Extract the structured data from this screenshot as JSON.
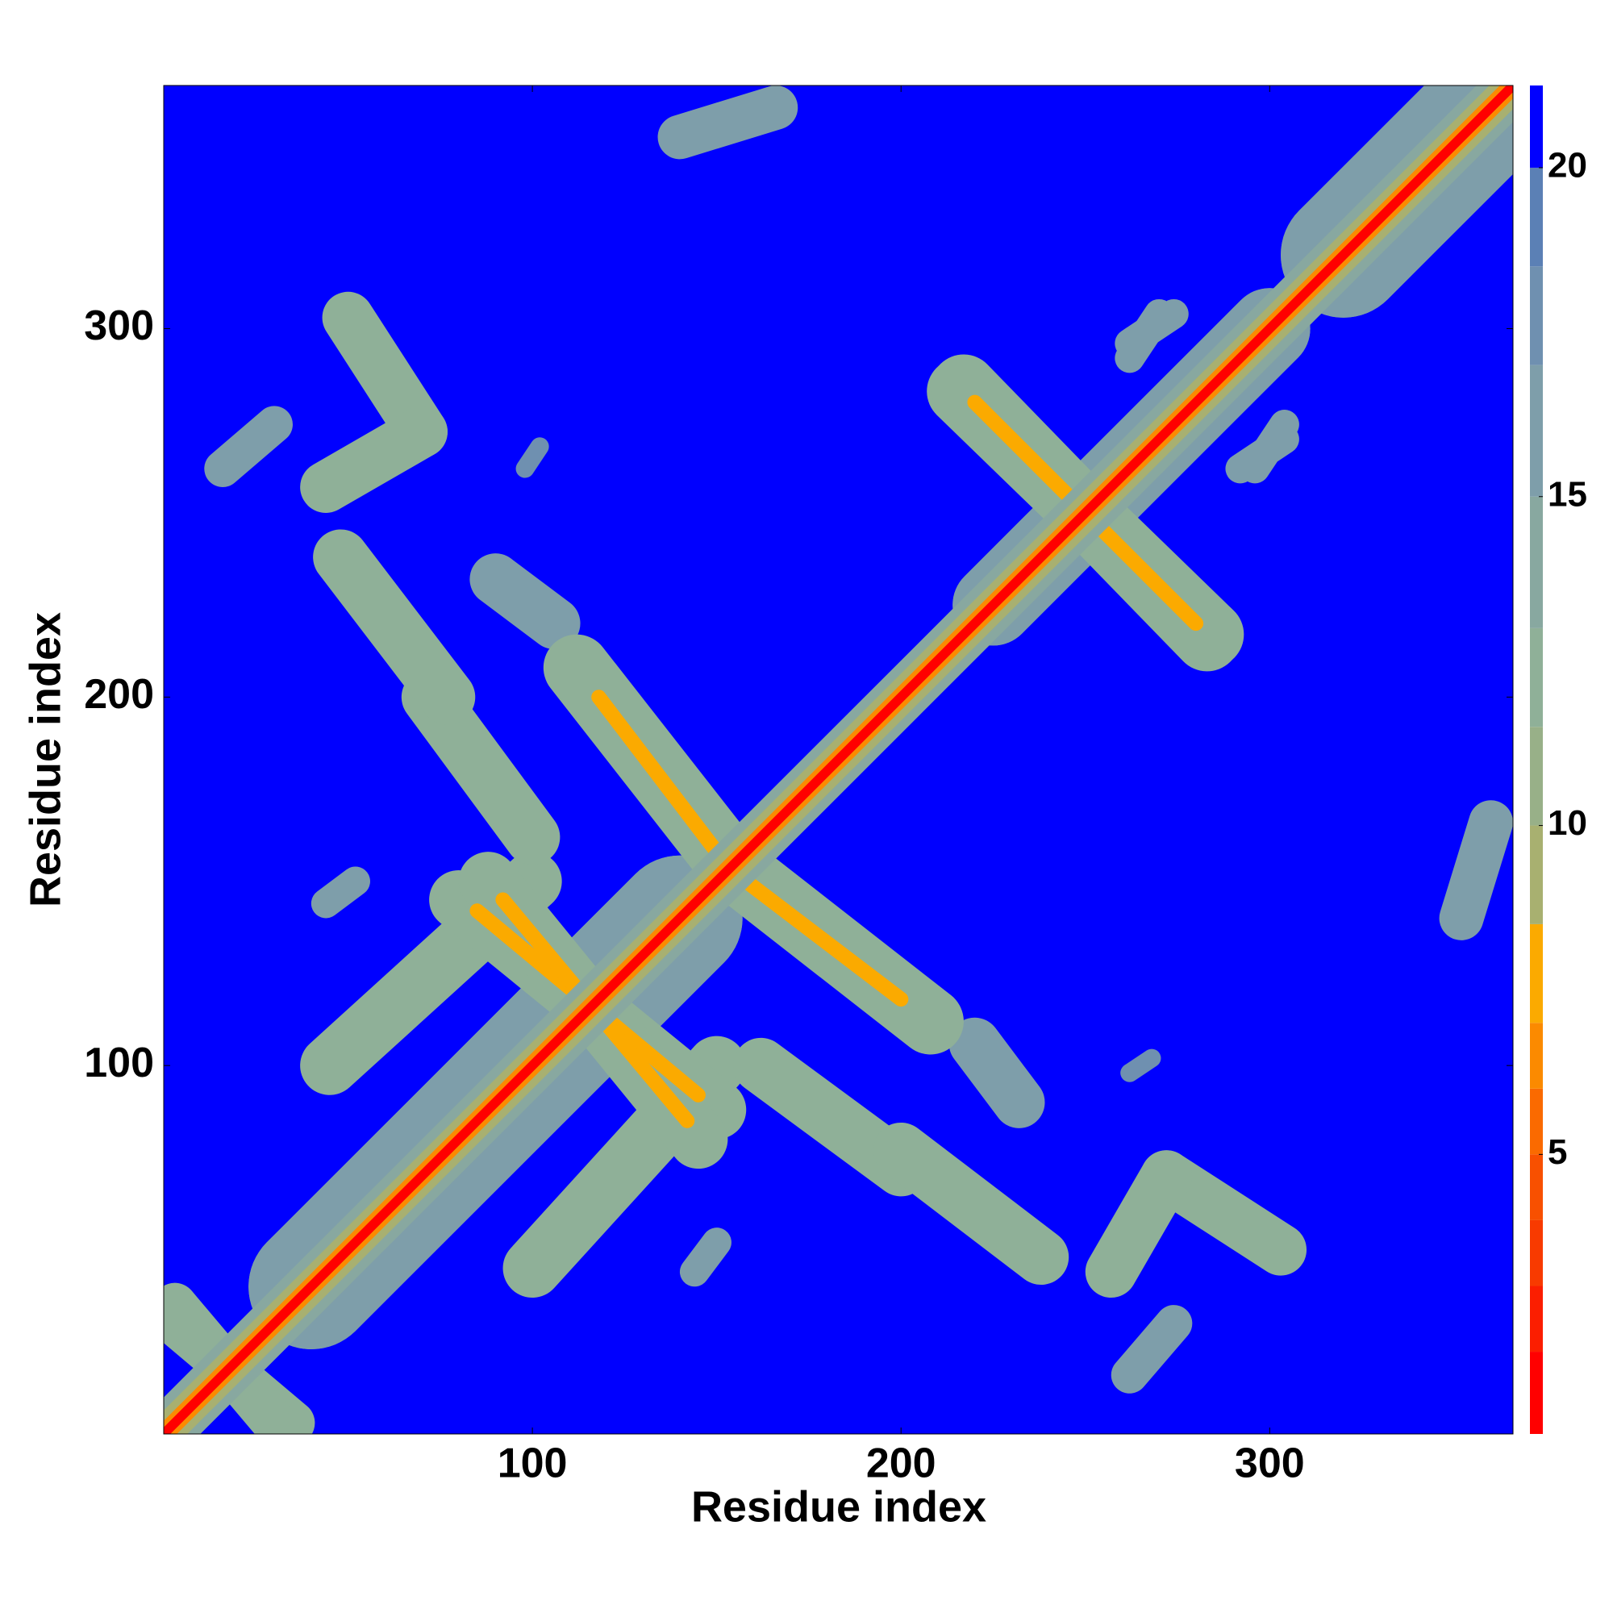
{
  "chart_data": {
    "type": "heatmap",
    "xlabel": "Residue index",
    "ylabel": "Residue index",
    "xlim": [
      0,
      366
    ],
    "ylim": [
      0,
      366
    ],
    "xticks": [
      100,
      200,
      300
    ],
    "yticks": [
      100,
      200,
      300
    ],
    "symmetric": true,
    "segments": [
      {
        "x": [
          40,
          140
        ],
        "y": [
          40,
          140
        ],
        "width": 34,
        "value": 17
      },
      {
        "x": [
          320,
          366
        ],
        "y": [
          320,
          366
        ],
        "width": 34,
        "value": 17
      },
      {
        "x": [
          225,
          300
        ],
        "y": [
          225,
          300
        ],
        "width": 22,
        "value": 17
      },
      {
        "x": [
          140,
          166
        ],
        "y": [
          352,
          360
        ],
        "width": 12,
        "value": 16
      },
      {
        "x": [
          16,
          30
        ],
        "y": [
          262,
          274
        ],
        "width": 10,
        "value": 16
      },
      {
        "x": [
          44,
          52
        ],
        "y": [
          144,
          150
        ],
        "width": 8,
        "value": 17
      },
      {
        "x": [
          90,
          106
        ],
        "y": [
          232,
          220
        ],
        "width": 14,
        "value": 16
      },
      {
        "x": [
          262,
          274
        ],
        "y": [
          296,
          304
        ],
        "width": 8,
        "value": 17
      },
      {
        "x": [
          292,
          304
        ],
        "y": [
          262,
          270
        ],
        "width": 8,
        "value": 17
      },
      {
        "x": [
          262,
          268
        ],
        "y": [
          98,
          102
        ],
        "width": 5,
        "value": 18
      },
      {
        "x": [
          3,
          35
        ],
        "y": [
          30,
          3
        ],
        "width": 12,
        "value": 13
      },
      {
        "x": [
          45,
          100
        ],
        "y": [
          100,
          150
        ],
        "width": 16,
        "value": 13
      },
      {
        "x": [
          80,
          150
        ],
        "y": [
          145,
          88
        ],
        "width": 16,
        "value": 13
      },
      {
        "x": [
          153,
          208
        ],
        "y": [
          155,
          112
        ],
        "width": 18,
        "value": 13
      },
      {
        "x": [
          162,
          200
        ],
        "y": [
          100,
          72
        ],
        "width": 15,
        "value": 13
      },
      {
        "x": [
          200,
          238
        ],
        "y": [
          77,
          48
        ],
        "width": 15,
        "value": 13
      },
      {
        "x": [
          216,
          284
        ],
        "y": [
          283,
          217
        ],
        "width": 18,
        "value": 13
      },
      {
        "x": [
          50,
          70
        ],
        "y": [
          303,
          272
        ],
        "width": 14,
        "value": 12
      },
      {
        "x": [
          70,
          44
        ],
        "y": [
          272,
          257
        ],
        "width": 14,
        "value": 12
      },
      {
        "x": [
          158,
          200
        ],
        "y": [
          150,
          118
        ],
        "width": 4,
        "value": 7.5
      },
      {
        "x": [
          220,
          280
        ],
        "y": [
          280,
          220
        ],
        "width": 4,
        "value": 7.5
      },
      {
        "x": [
          85,
          145
        ],
        "y": [
          142,
          92
        ],
        "width": 4,
        "value": 8
      },
      {
        "x": [
          0,
          366
        ],
        "y": [
          0,
          366
        ],
        "width": 14,
        "value": 14
      },
      {
        "x": [
          0,
          366
        ],
        "y": [
          0,
          366
        ],
        "width": 9,
        "value": 10
      },
      {
        "x": [
          0,
          366
        ],
        "y": [
          0,
          366
        ],
        "width": 5,
        "value": 7
      },
      {
        "x": [
          0,
          366
        ],
        "y": [
          0,
          366
        ],
        "width": 2.5,
        "value": 2
      }
    ],
    "colorbar": {
      "lim": [
        0.75,
        21.25
      ],
      "ticks": [
        5,
        10,
        15,
        20
      ],
      "levels": [
        {
          "max": 2,
          "color": "#ff0000"
        },
        {
          "max": 3,
          "color": "#fb1e00"
        },
        {
          "max": 4,
          "color": "#f83a00"
        },
        {
          "max": 5,
          "color": "#f85000"
        },
        {
          "max": 6,
          "color": "#fa6a00"
        },
        {
          "max": 7,
          "color": "#fb8a00"
        },
        {
          "max": 8.5,
          "color": "#fbaa00"
        },
        {
          "max": 10,
          "color": "#a8b070"
        },
        {
          "max": 11.5,
          "color": "#98b088"
        },
        {
          "max": 13,
          "color": "#8fb098"
        },
        {
          "max": 15,
          "color": "#88a8a0"
        },
        {
          "max": 17,
          "color": "#7e9eaa"
        },
        {
          "max": 18.5,
          "color": "#6f90b0"
        },
        {
          "max": 20,
          "color": "#5b80b5"
        },
        {
          "max": 21.25,
          "color": "#0000ff"
        }
      ]
    }
  }
}
